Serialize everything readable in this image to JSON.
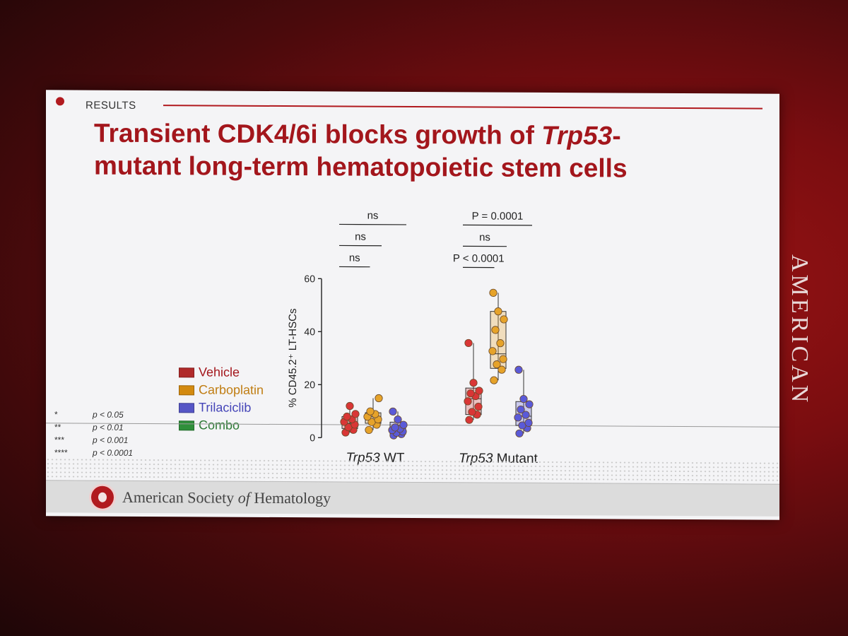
{
  "slide": {
    "section": "RESULTS",
    "title_line1_pre": "Transient CDK4/6i blocks growth of ",
    "title_line1_gene": "Trp53",
    "title_line1_post": "-",
    "title_line2": "mutant long-term hematopoietic stem cells",
    "footer_org_pre": "American Society ",
    "footer_org_of": "of",
    "footer_org_post": " Hematology",
    "side_text": "AMERICAN"
  },
  "legend": [
    {
      "label": "Vehicle",
      "color": "#b02a2a",
      "text_color": "#a3161c"
    },
    {
      "label": "Carboplatin",
      "color": "#d38a10",
      "text_color": "#c07d12"
    },
    {
      "label": "Trilaciclib",
      "color": "#5656c6",
      "text_color": "#4545b8"
    },
    {
      "label": "Combo",
      "color": "#2f8f3a",
      "text_color": "#2d7a35"
    }
  ],
  "significance": [
    {
      "stars": "*",
      "p": "p < 0.05"
    },
    {
      "stars": "**",
      "p": "p < 0.01"
    },
    {
      "stars": "***",
      "p": "p < 0.001"
    },
    {
      "stars": "****",
      "p": "p < 0.0001"
    }
  ],
  "chart_data": {
    "type": "box",
    "ylabel": "% CD45.2⁺ LT-HSCs",
    "ylim": [
      0,
      60
    ],
    "yticks": [
      0,
      20,
      40,
      60
    ],
    "groups": [
      {
        "gene": "Trp53",
        "label": " WT"
      },
      {
        "gene": "Trp53",
        "label": " Mutant"
      }
    ],
    "series": [
      {
        "name": "Vehicle",
        "color": "#d93636",
        "group": 0,
        "points": [
          2,
          3,
          4,
          5,
          6,
          7,
          8,
          9,
          12
        ],
        "box": {
          "min": 2,
          "q1": 3.5,
          "median": 5.5,
          "q3": 8,
          "max": 12
        }
      },
      {
        "name": "Carboplatin",
        "color": "#e6a32a",
        "group": 0,
        "points": [
          3,
          5,
          6,
          7,
          8,
          9,
          10,
          15
        ],
        "box": {
          "min": 3,
          "q1": 5.5,
          "median": 8,
          "q3": 9.5,
          "max": 15
        }
      },
      {
        "name": "Trilaciclib",
        "color": "#5a5ad8",
        "group": 0,
        "points": [
          1,
          1.5,
          2,
          2.5,
          3,
          3.5,
          4,
          5,
          7,
          10
        ],
        "box": {
          "min": 1,
          "q1": 1.5,
          "median": 3,
          "q3": 6,
          "max": 10
        }
      },
      {
        "name": "Vehicle",
        "color": "#d93636",
        "group": 1,
        "points": [
          7,
          9,
          10,
          12,
          14,
          16,
          17,
          18,
          21,
          36
        ],
        "box": {
          "min": 7,
          "q1": 9,
          "median": 15,
          "q3": 19,
          "max": 36
        }
      },
      {
        "name": "Carboplatin",
        "color": "#e6a32a",
        "group": 1,
        "points": [
          22,
          26,
          28,
          30,
          33,
          36,
          41,
          45,
          48,
          55
        ],
        "box": {
          "min": 22,
          "q1": 26.5,
          "median": 32,
          "q3": 48,
          "max": 55
        }
      },
      {
        "name": "Trilaciclib",
        "color": "#5a5ad8",
        "group": 1,
        "points": [
          2,
          4,
          5,
          6,
          8,
          9,
          11,
          13,
          15,
          26
        ],
        "box": {
          "min": 2,
          "q1": 5,
          "median": 8.5,
          "q3": 14,
          "max": 26
        }
      }
    ],
    "comparisons": [
      {
        "label": "ns",
        "from": 0,
        "to": 2,
        "level": 3
      },
      {
        "label": "ns",
        "from": 0,
        "to": 1,
        "level": 2
      },
      {
        "label": "ns",
        "from": 0,
        "to": 0.5,
        "level": 1
      },
      {
        "label": "P = 0.0001",
        "from": 3,
        "to": 5,
        "level": 3
      },
      {
        "label": "ns",
        "from": 3,
        "to": 4,
        "level": 2
      },
      {
        "label": "P < 0.0001",
        "from": 3,
        "to": 3.5,
        "level": 1
      }
    ]
  }
}
